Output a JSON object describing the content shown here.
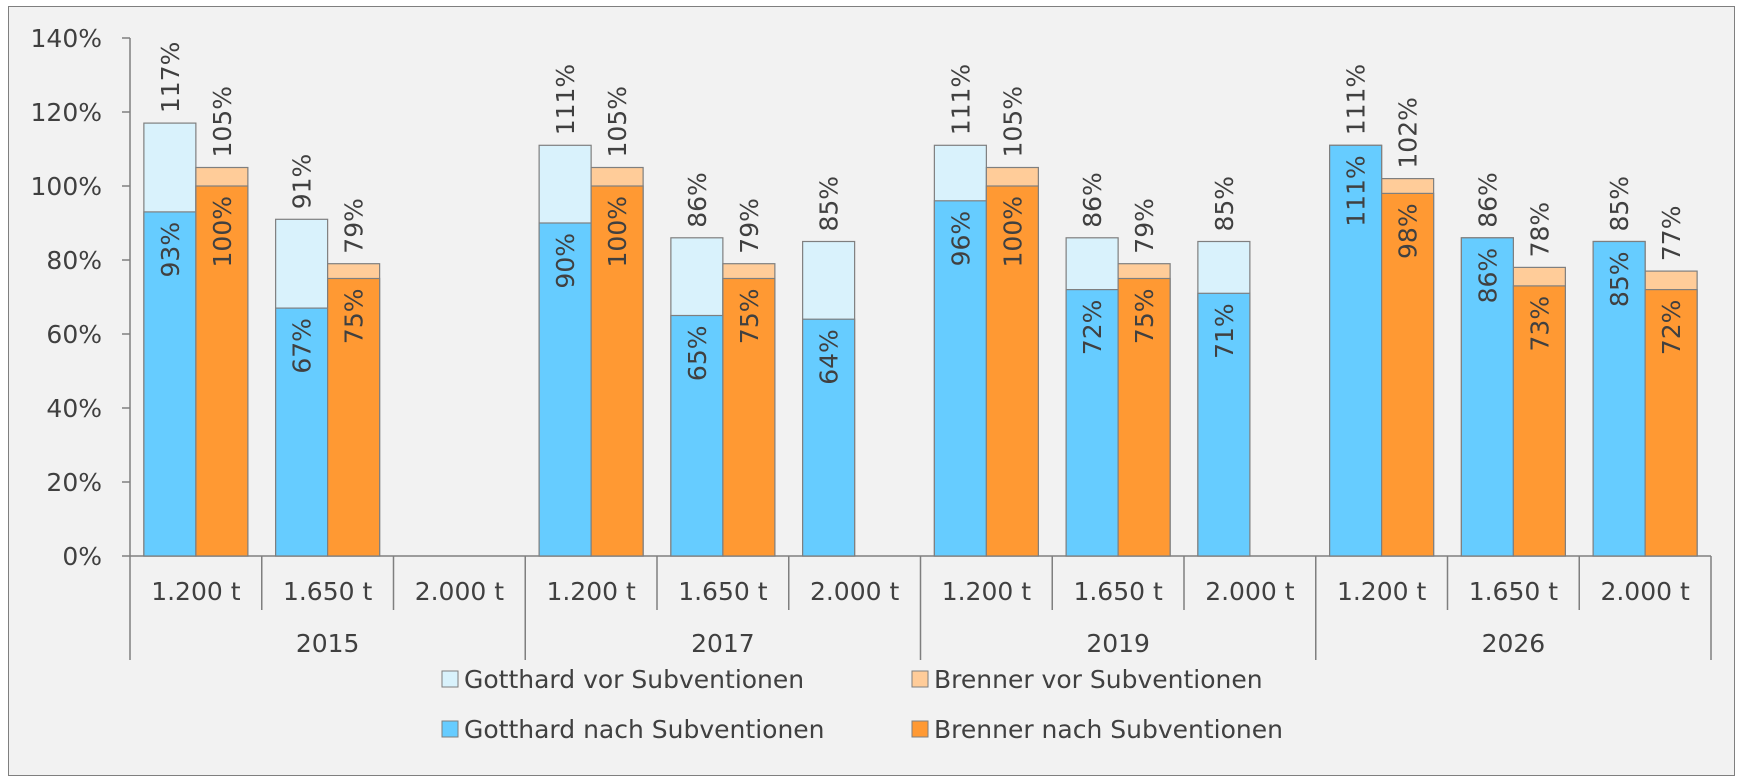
{
  "chart_data": {
    "type": "bar",
    "title": "",
    "xlabel": "",
    "ylabel": "",
    "ylim": [
      0,
      140
    ],
    "y_ticks": [
      "0%",
      "20%",
      "40%",
      "60%",
      "80%",
      "100%",
      "120%",
      "140%"
    ],
    "grid": false,
    "legend_position": "bottom",
    "groups": [
      {
        "label": "2015",
        "categories": [
          "1.200 t",
          "1.650 t",
          "2.000 t"
        ]
      },
      {
        "label": "2017",
        "categories": [
          "1.200 t",
          "1.650 t",
          "2.000 t"
        ]
      },
      {
        "label": "2019",
        "categories": [
          "1.200 t",
          "1.650 t",
          "2.000 t"
        ]
      },
      {
        "label": "2026",
        "categories": [
          "1.200 t",
          "1.650 t",
          "2.000 t"
        ]
      }
    ],
    "series": [
      {
        "name": "Gotthard vor Subventionen",
        "color": "#d9f2fc",
        "values": [
          117,
          91,
          null,
          111,
          86,
          85,
          111,
          86,
          85,
          111,
          86,
          85
        ],
        "labels": [
          "117%",
          "91%",
          "",
          "111%",
          "86%",
          "85%",
          "111%",
          "86%",
          "85%",
          "111%",
          "86%",
          "85%"
        ]
      },
      {
        "name": "Brenner vor Subventionen",
        "color": "#ffcc99",
        "values": [
          105,
          79,
          null,
          105,
          79,
          null,
          105,
          79,
          null,
          102,
          78,
          77
        ],
        "labels": [
          "105%",
          "79%",
          "",
          "105%",
          "79%",
          "",
          "105%",
          "79%",
          "",
          "102%",
          "78%",
          "77%"
        ]
      },
      {
        "name": "Gotthard nach Subventionen",
        "color": "#66ccff",
        "values": [
          93,
          67,
          null,
          90,
          65,
          64,
          96,
          72,
          71,
          111,
          86,
          85
        ],
        "labels": [
          "93%",
          "67%",
          "",
          "90%",
          "65%",
          "64%",
          "96%",
          "72%",
          "71%",
          "111%",
          "86%",
          "85%"
        ]
      },
      {
        "name": "Brenner nach Subventionen",
        "color": "#ff9933",
        "values": [
          100,
          75,
          null,
          100,
          75,
          null,
          100,
          75,
          null,
          98,
          73,
          72
        ],
        "labels": [
          "100%",
          "75%",
          "",
          "100%",
          "75%",
          "",
          "100%",
          "75%",
          "",
          "98%",
          "73%",
          "72%"
        ]
      }
    ]
  }
}
